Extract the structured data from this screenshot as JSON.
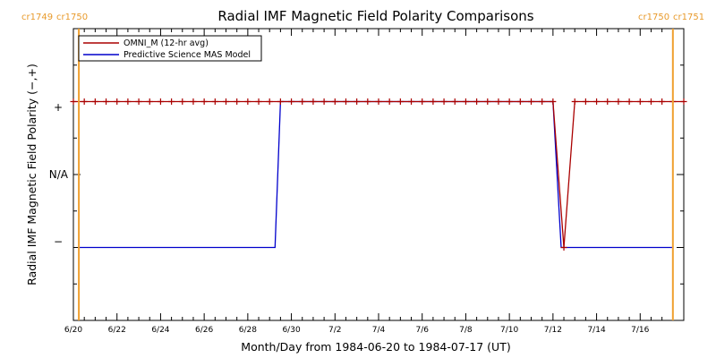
{
  "chart_data": {
    "type": "line",
    "title": "Radial IMF Magnetic Field Polarity Comparisons",
    "xlabel": "Month/Day from 1984-06-20 to 1984-07-17 (UT)",
    "ylabel": "Radial IMF Magnetic Field Polarity (−,+)",
    "x_ticks": [
      "6/20",
      "6/22",
      "6/24",
      "6/26",
      "6/28",
      "6/30",
      "7/2",
      "7/4",
      "7/6",
      "7/8",
      "7/10",
      "7/12",
      "7/14",
      "7/16"
    ],
    "xlim": [
      "1984-06-20",
      "1984-07-18"
    ],
    "y_ticks": [
      "−",
      "N/A",
      "+"
    ],
    "y_tick_values": [
      -1,
      0,
      1
    ],
    "ylim": [
      -2,
      2
    ],
    "carrington_markers": [
      {
        "date": "1984-06-20T06:00",
        "label_left": "cr1749",
        "label_right": "cr1750"
      },
      {
        "date": "1984-07-17T12:00",
        "label_left": "cr1750",
        "label_right": "cr1751"
      }
    ],
    "legend_position": "top-left",
    "series": [
      {
        "name": "OMNI_M (12-hr avg)",
        "color": "#aa0000",
        "marker": "+",
        "x": [
          "1984-06-20",
          "1984-06-20T12:00",
          "1984-06-21",
          "1984-06-21T12:00",
          "1984-06-22",
          "1984-06-22T12:00",
          "1984-06-23",
          "1984-06-23T12:00",
          "1984-06-24",
          "1984-06-24T12:00",
          "1984-06-25",
          "1984-06-25T12:00",
          "1984-06-26",
          "1984-06-26T12:00",
          "1984-06-27",
          "1984-06-27T12:00",
          "1984-06-28",
          "1984-06-28T12:00",
          "1984-06-29",
          "1984-06-29T12:00",
          "1984-06-30",
          "1984-06-30T12:00",
          "1984-07-01",
          "1984-07-01T12:00",
          "1984-07-02",
          "1984-07-02T12:00",
          "1984-07-03",
          "1984-07-03T12:00",
          "1984-07-04",
          "1984-07-04T12:00",
          "1984-07-05",
          "1984-07-05T12:00",
          "1984-07-06",
          "1984-07-06T12:00",
          "1984-07-07",
          "1984-07-07T12:00",
          "1984-07-08",
          "1984-07-08T12:00",
          "1984-07-09",
          "1984-07-09T12:00",
          "1984-07-10",
          "1984-07-10T12:00",
          "1984-07-11",
          "1984-07-11T12:00",
          "1984-07-12",
          "1984-07-12T12:00",
          "1984-07-13",
          "1984-07-13T12:00",
          "1984-07-14",
          "1984-07-14T12:00",
          "1984-07-15",
          "1984-07-15T12:00",
          "1984-07-16",
          "1984-07-16T12:00",
          "1984-07-17",
          "1984-07-17T12:00",
          "1984-07-18"
        ],
        "values": [
          1,
          1,
          1,
          1,
          1,
          1,
          1,
          1,
          1,
          1,
          1,
          1,
          1,
          1,
          1,
          1,
          1,
          1,
          1,
          1,
          1,
          1,
          1,
          1,
          1,
          1,
          1,
          1,
          1,
          1,
          1,
          1,
          1,
          1,
          1,
          1,
          1,
          1,
          1,
          1,
          1,
          1,
          1,
          1,
          1,
          -1,
          1,
          1,
          1,
          1,
          1,
          1,
          1,
          1,
          1,
          1,
          1
        ]
      },
      {
        "name": "Predictive Science MAS Model",
        "color": "#0000cc",
        "x": [
          "1984-06-20T06:00",
          "1984-06-29T06:00",
          "1984-06-29T12:00",
          "1984-07-12",
          "1984-07-12T09:00",
          "1984-07-17T12:00"
        ],
        "values": [
          -1,
          -1,
          1,
          1,
          -1,
          -1
        ]
      }
    ]
  }
}
